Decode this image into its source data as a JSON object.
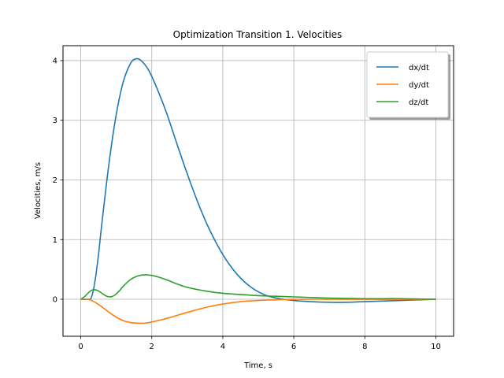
{
  "chart_data": {
    "type": "line",
    "title": "Optimization Transition 1. Velocities",
    "xlabel": "Time, s",
    "ylabel": "Velocities, m/s",
    "xlim": [
      -0.5,
      10.5
    ],
    "ylim": [
      -0.62,
      4.25
    ],
    "xticks": [
      0,
      2,
      4,
      6,
      8,
      10
    ],
    "yticks": [
      0,
      1,
      2,
      3,
      4
    ],
    "grid": true,
    "legend_position": "top-right",
    "series": [
      {
        "name": "dx/dt",
        "color": "#1f77b4",
        "x": [
          0,
          0.2,
          0.3,
          0.4,
          0.5,
          0.6,
          0.8,
          1.0,
          1.2,
          1.4,
          1.55,
          1.7,
          1.9,
          2.1,
          2.4,
          2.7,
          3.0,
          3.3,
          3.6,
          4.0,
          4.4,
          4.8,
          5.2,
          5.6,
          6.0,
          6.5,
          7.0,
          7.5,
          8.0,
          9.0,
          10.0
        ],
        "y": [
          0.0,
          0.0,
          0.03,
          0.3,
          0.75,
          1.3,
          2.3,
          3.1,
          3.65,
          3.95,
          4.03,
          4.0,
          3.85,
          3.6,
          3.15,
          2.62,
          2.1,
          1.62,
          1.2,
          0.75,
          0.42,
          0.2,
          0.07,
          0.01,
          -0.02,
          -0.04,
          -0.05,
          -0.05,
          -0.04,
          -0.02,
          0.0
        ]
      },
      {
        "name": "dy/dt",
        "color": "#ff7f0e",
        "x": [
          0,
          0.2,
          0.4,
          0.6,
          0.8,
          1.0,
          1.2,
          1.4,
          1.6,
          1.8,
          2.0,
          2.3,
          2.6,
          3.0,
          3.5,
          4.0,
          4.5,
          5.0,
          5.5,
          6.0,
          7.0,
          8.0,
          10.0
        ],
        "y": [
          0.0,
          0.0,
          -0.05,
          -0.13,
          -0.22,
          -0.3,
          -0.36,
          -0.39,
          -0.4,
          -0.4,
          -0.38,
          -0.34,
          -0.29,
          -0.22,
          -0.14,
          -0.08,
          -0.04,
          -0.02,
          -0.01,
          0.0,
          0.0,
          0.0,
          0.0
        ]
      },
      {
        "name": "dz/dt",
        "color": "#2ca02c",
        "x": [
          0,
          0.1,
          0.2,
          0.3,
          0.4,
          0.5,
          0.6,
          0.7,
          0.8,
          0.9,
          1.0,
          1.1,
          1.2,
          1.4,
          1.6,
          1.8,
          2.0,
          2.2,
          2.4,
          2.7,
          3.0,
          3.5,
          4.0,
          4.5,
          5.0,
          5.5,
          6.0,
          7.0,
          8.0,
          9.0,
          10.0
        ],
        "y": [
          0.0,
          0.04,
          0.1,
          0.15,
          0.16,
          0.14,
          0.1,
          0.06,
          0.04,
          0.05,
          0.09,
          0.15,
          0.22,
          0.33,
          0.39,
          0.41,
          0.4,
          0.37,
          0.33,
          0.26,
          0.2,
          0.14,
          0.1,
          0.08,
          0.06,
          0.05,
          0.04,
          0.02,
          0.01,
          0.01,
          0.0
        ]
      }
    ]
  }
}
